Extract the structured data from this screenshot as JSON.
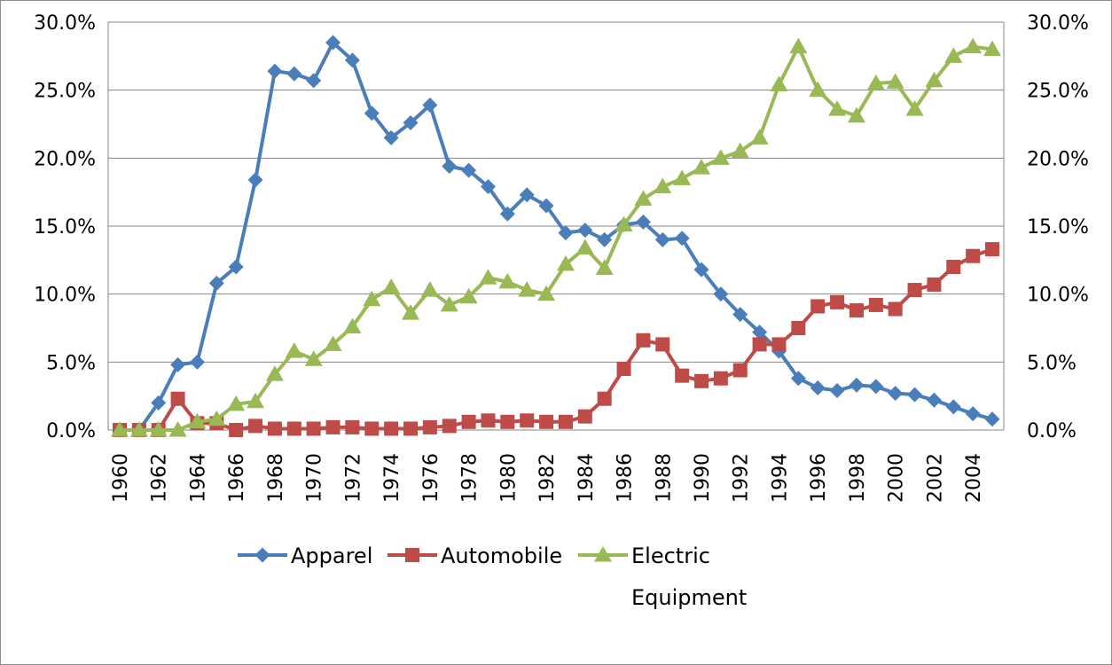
{
  "chart_data": {
    "type": "line",
    "title": "",
    "xlabel": "",
    "ylabel": "",
    "ylim": [
      0,
      30
    ],
    "y_ticks": [
      "0.0%",
      "5.0%",
      "10.0%",
      "15.0%",
      "20.0%",
      "25.0%",
      "30.0%"
    ],
    "secondary_y_ticks": [
      "0.0%",
      "5.0%",
      "10.0%",
      "15.0%",
      "20.0%",
      "25.0%",
      "30.0%"
    ],
    "grid": "horizontal",
    "legend_position": "bottom",
    "x": [
      1960,
      1961,
      1962,
      1963,
      1964,
      1965,
      1966,
      1967,
      1968,
      1969,
      1970,
      1971,
      1972,
      1973,
      1974,
      1975,
      1976,
      1977,
      1978,
      1979,
      1980,
      1981,
      1982,
      1983,
      1984,
      1985,
      1986,
      1987,
      1988,
      1989,
      1990,
      1991,
      1992,
      1993,
      1994,
      1995,
      1996,
      1997,
      1998,
      1999,
      2000,
      2001,
      2002,
      2003,
      2004,
      2005
    ],
    "x_tick_labels": [
      "1960",
      "1962",
      "1964",
      "1966",
      "1968",
      "1970",
      "1972",
      "1974",
      "1976",
      "1978",
      "1980",
      "1982",
      "1984",
      "1986",
      "1988",
      "1990",
      "1992",
      "1994",
      "1996",
      "1998",
      "2000",
      "2002",
      "2004"
    ],
    "series": [
      {
        "name": "Apparel",
        "color": "#4a7ebb",
        "marker": "diamond",
        "values": [
          0.0,
          0.0,
          2.0,
          4.8,
          5.0,
          10.8,
          12.0,
          18.4,
          26.4,
          26.2,
          25.7,
          28.5,
          27.2,
          23.3,
          21.5,
          22.6,
          23.9,
          19.4,
          19.1,
          17.9,
          15.9,
          17.3,
          16.5,
          14.5,
          14.7,
          14.0,
          15.1,
          15.3,
          14.0,
          14.1,
          11.8,
          10.0,
          8.5,
          7.2,
          5.8,
          3.8,
          3.1,
          2.9,
          3.3,
          3.2,
          2.7,
          2.6,
          2.2,
          1.7,
          1.2,
          0.8
        ]
      },
      {
        "name": "Automobile",
        "color": "#be4b48",
        "marker": "square",
        "values": [
          0.0,
          0.0,
          0.0,
          2.3,
          0.5,
          0.5,
          0.0,
          0.3,
          0.1,
          0.1,
          0.1,
          0.2,
          0.2,
          0.1,
          0.1,
          0.1,
          0.2,
          0.3,
          0.6,
          0.7,
          0.6,
          0.7,
          0.6,
          0.6,
          1.0,
          2.3,
          4.5,
          6.6,
          6.3,
          4.0,
          3.6,
          3.8,
          4.4,
          6.3,
          6.3,
          7.5,
          9.1,
          9.4,
          8.8,
          9.2,
          8.9,
          10.3,
          10.7,
          12.0,
          12.8,
          13.3
        ]
      },
      {
        "name": "Electric\nEquipment",
        "color": "#98b954",
        "marker": "triangle",
        "values": [
          0.0,
          0.0,
          0.0,
          0.0,
          0.6,
          0.8,
          1.9,
          2.1,
          4.1,
          5.8,
          5.2,
          6.3,
          7.6,
          9.6,
          10.5,
          8.6,
          10.3,
          9.2,
          9.8,
          11.2,
          10.9,
          10.3,
          10.0,
          12.2,
          13.4,
          11.9,
          15.1,
          17.0,
          17.9,
          18.5,
          19.3,
          20.0,
          20.5,
          21.5,
          25.4,
          28.2,
          25.0,
          23.6,
          23.1,
          25.5,
          25.6,
          23.6,
          25.7,
          27.5,
          28.2,
          28.0
        ]
      }
    ],
    "legend": [
      "Apparel",
      "Automobile",
      "Electric",
      "Equipment"
    ]
  }
}
